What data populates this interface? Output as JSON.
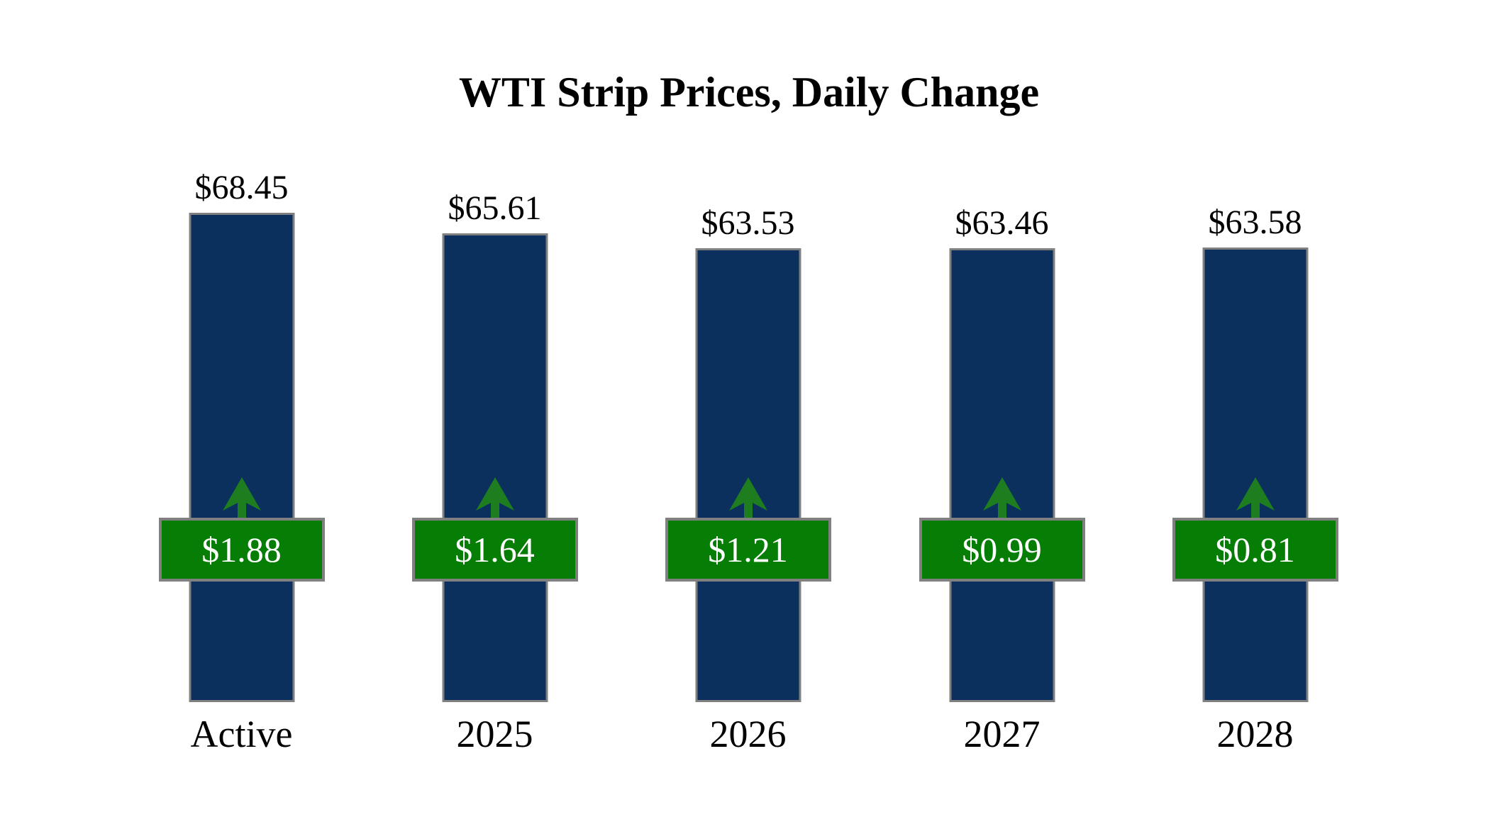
{
  "chart_data": {
    "type": "bar",
    "title": "WTI Strip Prices, Daily Change",
    "categories": [
      "Active",
      "2025",
      "2026",
      "2027",
      "2028"
    ],
    "values": [
      68.45,
      65.61,
      63.53,
      63.46,
      63.58
    ],
    "values_display": [
      "$68.45",
      "$65.61",
      "$63.53",
      "$63.46",
      "$63.58"
    ],
    "changes": [
      1.88,
      1.64,
      1.21,
      0.99,
      0.81
    ],
    "changes_display": [
      "$1.88",
      "$1.64",
      "$1.21",
      "$0.99",
      "$0.81"
    ],
    "change_direction": [
      "up",
      "up",
      "up",
      "up",
      "up"
    ],
    "xlabel": "",
    "ylabel": "",
    "ylim": [
      0,
      68.45
    ],
    "grid": false,
    "legend": "none",
    "colors": {
      "background": "#ffffff",
      "bar_fill": "#0C305E",
      "bar_border": "#808080",
      "badge_fill": "#067E06",
      "badge_border": "#808080",
      "badge_text": "#ffffff",
      "arrow": "#1E7D1E",
      "title_text": "#000000",
      "label_text": "#000000"
    }
  }
}
